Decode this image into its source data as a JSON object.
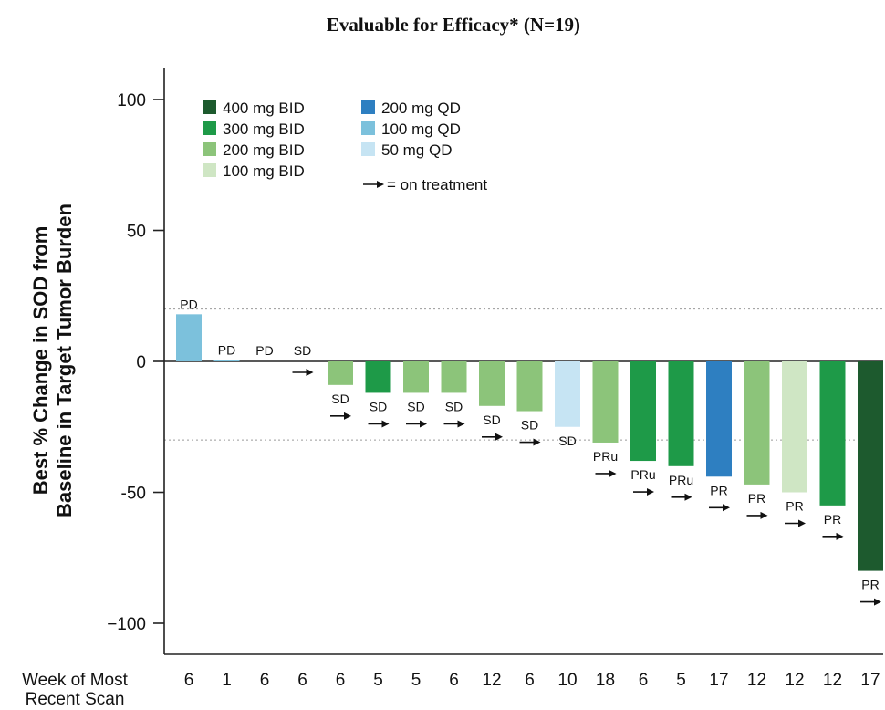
{
  "chart_data": {
    "type": "bar",
    "title": "Evaluable for Efficacy* (N=19)",
    "ylabel_lines": [
      "Best % Change in SOD from",
      "Baseline in Target Tumor Burden"
    ],
    "xlabel_lines": [
      "Week of Most",
      "Recent Scan"
    ],
    "ylim": [
      -110,
      110
    ],
    "yticks": [
      100,
      50,
      0,
      -50,
      -100
    ],
    "ytick_labels": [
      "100",
      "50",
      "0",
      "-50",
      "−100"
    ],
    "reference_lines": [
      20,
      -30
    ],
    "legend_placement": "top-left",
    "dose_colors": {
      "400 mg BID": "#1d5a2e",
      "300 mg BID": "#1e9a48",
      "200 mg BID": "#8cc47a",
      "100 mg BID": "#cfe6c4",
      "200 mg QD": "#2e7fc1",
      "100 mg QD": "#7cc1dc",
      "50 mg QD": "#c6e4f3"
    },
    "legend_col1": [
      "400 mg BID",
      "300 mg BID",
      "200 mg BID",
      "100 mg BID"
    ],
    "legend_col2": [
      "200 mg QD",
      "100 mg QD",
      "50 mg QD"
    ],
    "legend_arrow_label": "= on treatment",
    "bars": [
      {
        "value": 18,
        "dose": "100 mg QD",
        "response": "PD",
        "on_treatment": false,
        "week": "6"
      },
      {
        "value": 0.5,
        "dose": "100 mg QD",
        "response": "PD",
        "on_treatment": false,
        "week": "1"
      },
      {
        "value": 0,
        "dose": "200 mg BID",
        "response": "PD",
        "on_treatment": false,
        "week": "6"
      },
      {
        "value": 0,
        "dose": "200 mg BID",
        "response": "SD",
        "on_treatment": true,
        "week": "6"
      },
      {
        "value": -9,
        "dose": "200 mg BID",
        "response": "SD",
        "on_treatment": true,
        "week": "6"
      },
      {
        "value": -12,
        "dose": "300 mg BID",
        "response": "SD",
        "on_treatment": true,
        "week": "5"
      },
      {
        "value": -12,
        "dose": "200 mg BID",
        "response": "SD",
        "on_treatment": true,
        "week": "5"
      },
      {
        "value": -12,
        "dose": "200 mg BID",
        "response": "SD",
        "on_treatment": true,
        "week": "6"
      },
      {
        "value": -17,
        "dose": "200 mg BID",
        "response": "SD",
        "on_treatment": true,
        "week": "12"
      },
      {
        "value": -19,
        "dose": "200 mg BID",
        "response": "SD",
        "on_treatment": true,
        "week": "6"
      },
      {
        "value": -25,
        "dose": "50 mg QD",
        "response": "SD",
        "on_treatment": false,
        "week": "10"
      },
      {
        "value": -31,
        "dose": "200 mg BID",
        "response": "PRu",
        "on_treatment": true,
        "week": "18"
      },
      {
        "value": -38,
        "dose": "300 mg BID",
        "response": "PRu",
        "on_treatment": true,
        "week": "6"
      },
      {
        "value": -40,
        "dose": "300 mg BID",
        "response": "PRu",
        "on_treatment": true,
        "week": "5"
      },
      {
        "value": -44,
        "dose": "200 mg QD",
        "response": "PR",
        "on_treatment": true,
        "week": "17"
      },
      {
        "value": -47,
        "dose": "200 mg BID",
        "response": "PR",
        "on_treatment": true,
        "week": "12"
      },
      {
        "value": -50,
        "dose": "100 mg BID",
        "response": "PR",
        "on_treatment": true,
        "week": "12"
      },
      {
        "value": -55,
        "dose": "300 mg BID",
        "response": "PR",
        "on_treatment": true,
        "week": "12"
      },
      {
        "value": -80,
        "dose": "400 mg BID",
        "response": "PR",
        "on_treatment": true,
        "week": "17"
      }
    ]
  }
}
